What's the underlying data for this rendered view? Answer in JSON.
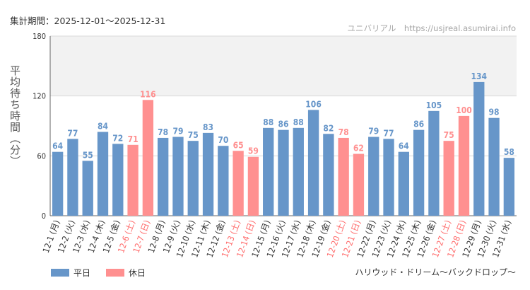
{
  "header": {
    "period_label": "集計期間：2025-12-01〜2025-12-31",
    "site_label": "ユニバリアル　https://usjreal.asumirai.info"
  },
  "attraction_name": "ハリウッド・ドリーム〜バックドロップ〜",
  "colors": {
    "weekday": "#6796c9",
    "holiday": "#ff9090",
    "grid_band": "#f2f2f2"
  },
  "chart_data": {
    "type": "bar",
    "title": "",
    "xlabel": "",
    "ylabel": "平均待ち時間（分）",
    "ylim": [
      0,
      180
    ],
    "yticks": [
      0,
      60,
      120,
      180
    ],
    "legend": [
      {
        "key": "weekday",
        "label": "平日"
      },
      {
        "key": "holiday",
        "label": "休日"
      }
    ],
    "categories": [
      "12-1 (月)",
      "12-2 (火)",
      "12-3 (水)",
      "12-4 (木)",
      "12-5 (金)",
      "12-6 (土)",
      "12-7 (日)",
      "12-8 (月)",
      "12-9 (火)",
      "12-10 (水)",
      "12-11 (木)",
      "12-12 (金)",
      "12-13 (土)",
      "12-14 (日)",
      "12-15 (月)",
      "12-16 (火)",
      "12-17 (水)",
      "12-18 (木)",
      "12-19 (金)",
      "12-20 (土)",
      "12-21 (日)",
      "12-22 (月)",
      "12-23 (火)",
      "12-24 (水)",
      "12-25 (木)",
      "12-26 (金)",
      "12-27 (土)",
      "12-28 (日)",
      "12-29 (月)",
      "12-30 (火)",
      "12-31 (水)"
    ],
    "values": [
      64,
      77,
      55,
      84,
      72,
      71,
      116,
      78,
      79,
      75,
      83,
      70,
      65,
      59,
      88,
      86,
      88,
      106,
      82,
      78,
      62,
      79,
      77,
      64,
      86,
      105,
      75,
      100,
      134,
      98,
      58
    ],
    "day_type": [
      "weekday",
      "weekday",
      "weekday",
      "weekday",
      "weekday",
      "holiday",
      "holiday",
      "weekday",
      "weekday",
      "weekday",
      "weekday",
      "weekday",
      "holiday",
      "holiday",
      "weekday",
      "weekday",
      "weekday",
      "weekday",
      "weekday",
      "holiday",
      "holiday",
      "weekday",
      "weekday",
      "weekday",
      "weekday",
      "weekday",
      "holiday",
      "holiday",
      "weekday",
      "weekday",
      "weekday"
    ]
  }
}
